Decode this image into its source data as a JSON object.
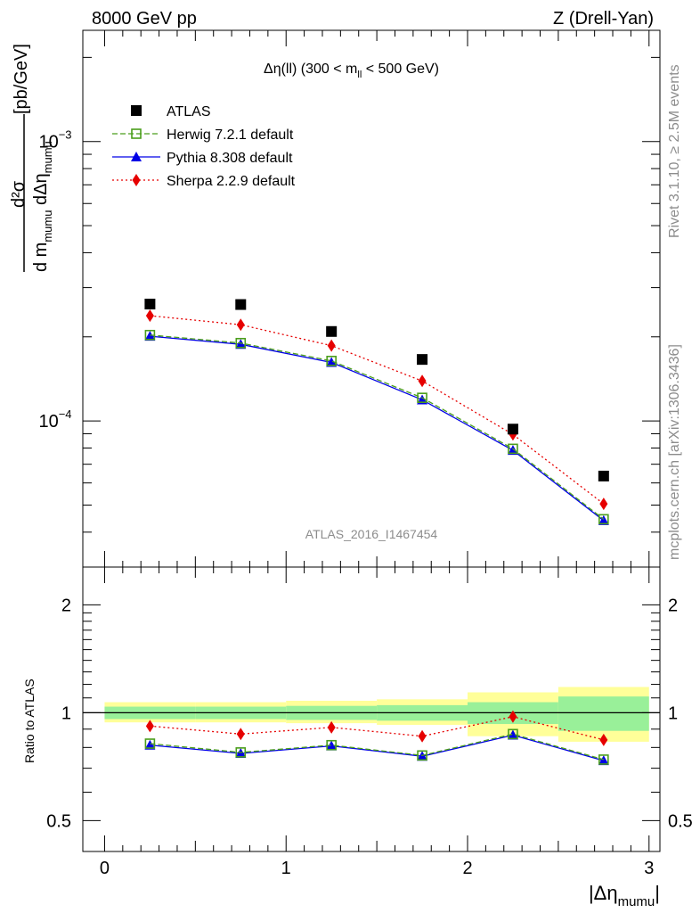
{
  "header": {
    "left": "8000 GeV pp",
    "right": "Z (Drell-Yan)"
  },
  "side": {
    "rivet": "Rivet 3.1.10, ≥ 2.5M events",
    "mcplots": "mcplots.cern.ch [arXiv:1306.3436]"
  },
  "chart_data": [
    {
      "type": "scatter",
      "title": "Δη(ll) (300 < m_ll < 500 GeV)",
      "title_parts": {
        "pre": "Δη(ll) (300 < m",
        "sub": "ll",
        "post": " < 500 GeV)"
      },
      "watermark": "ATLAS_2016_I1467454",
      "ylabel_parts": {
        "unit": "[pb/GeV]",
        "num": "d²σ",
        "den_d": "d m",
        "den_sub1": "mumu",
        "den_mid": " dΔη",
        "den_sub2": "mumu"
      },
      "yscale": "log",
      "xlim": [
        -0.12,
        3.06
      ],
      "ylim": [
        3e-05,
        0.0025
      ],
      "ytick_labels": [
        {
          "value": 0.001,
          "base": "10",
          "exp": "−3"
        },
        {
          "value": 0.0001,
          "base": "10",
          "exp": "−4"
        }
      ],
      "x": [
        0.25,
        0.75,
        1.25,
        1.75,
        2.25,
        2.75
      ],
      "x_edges": [
        0,
        0.5,
        1,
        1.5,
        2,
        2.5,
        3
      ],
      "legend_position": "top-left",
      "series": [
        {
          "name": "ATLAS",
          "marker": "square",
          "color": "#000000",
          "line": "none",
          "values": [
            0.000262,
            0.000261,
            0.000209,
            0.000166,
            9.35e-05,
            6.35e-05
          ]
        },
        {
          "name": "Herwig 7.2.1 default",
          "marker": "open-square",
          "color": "#4b9e1c",
          "line": "dashed",
          "values": [
            0.000203,
            0.00019,
            0.000164,
            0.000121,
            7.95e-05,
            4.45e-05
          ]
        },
        {
          "name": "Pythia 8.308 default",
          "marker": "triangle",
          "color": "#0000e6",
          "line": "solid",
          "values": [
            0.000201,
            0.000188,
            0.000162,
            0.000119,
            7.85e-05,
            4.4e-05
          ]
        },
        {
          "name": "Sherpa 2.2.9 default",
          "marker": "diamond",
          "color": "#e60000",
          "line": "dotted",
          "values": [
            0.000238,
            0.000221,
            0.000186,
            0.000139,
            8.95e-05,
            5.05e-05
          ]
        }
      ]
    },
    {
      "type": "scatter",
      "ylabel": "Ratio to ATLAS",
      "xlabel_parts": {
        "main": "|Δη",
        "sub": "mumu",
        "post": "|"
      },
      "yscale": "log",
      "xlim": [
        -0.12,
        3.06
      ],
      "ylim": [
        0.41,
        2.55
      ],
      "xticks": [
        0,
        1,
        2,
        3
      ],
      "yticks": [
        0.5,
        1,
        2
      ],
      "x": [
        0.25,
        0.75,
        1.25,
        1.75,
        2.25,
        2.75
      ],
      "x_edges": [
        0,
        0.5,
        1,
        1.5,
        2,
        2.5,
        3
      ],
      "band_inner": [
        [
          0.96,
          1.04
        ],
        [
          0.96,
          1.04
        ],
        [
          0.955,
          1.045
        ],
        [
          0.95,
          1.05
        ],
        [
          0.93,
          1.07
        ],
        [
          0.89,
          1.11
        ]
      ],
      "band_outer": [
        [
          0.94,
          1.07
        ],
        [
          0.94,
          1.07
        ],
        [
          0.935,
          1.08
        ],
        [
          0.925,
          1.09
        ],
        [
          0.86,
          1.14
        ],
        [
          0.83,
          1.18
        ]
      ],
      "band_inner_color": "#99f099",
      "band_outer_color": "#ffff99",
      "series": [
        {
          "name": "Herwig 7.2.1 default",
          "marker": "open-square",
          "color": "#4b9e1c",
          "line": "dashed",
          "values": [
            0.82,
            0.775,
            0.812,
            0.76,
            0.872,
            0.74
          ]
        },
        {
          "name": "Pythia 8.308 default",
          "marker": "triangle",
          "color": "#0000e6",
          "line": "solid",
          "values": [
            0.812,
            0.77,
            0.808,
            0.756,
            0.866,
            0.735
          ]
        },
        {
          "name": "Sherpa 2.2.9 default",
          "marker": "diamond",
          "color": "#e60000",
          "line": "dotted",
          "values": [
            0.918,
            0.872,
            0.91,
            0.86,
            0.975,
            0.84
          ]
        }
      ]
    }
  ]
}
